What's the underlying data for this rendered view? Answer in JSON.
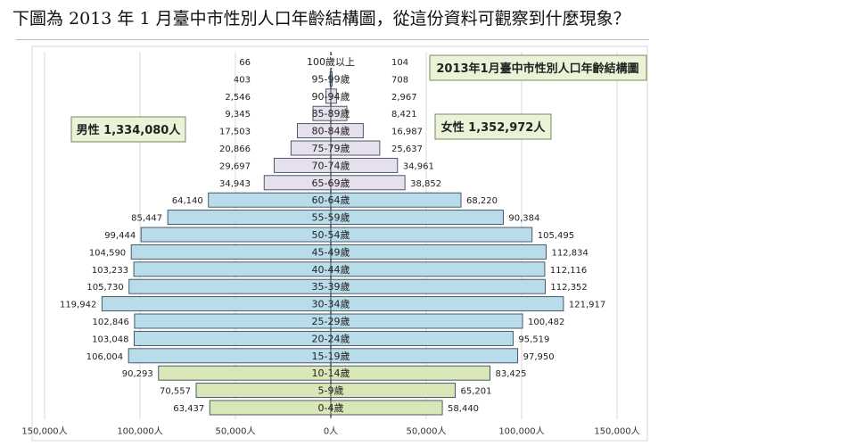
{
  "question": "下圖為 2013 年 1 月臺中市性別人口年齡結構圖，從這份資料可觀察到什麼現象？",
  "chart_data": {
    "type": "bar",
    "orientation": "horizontal",
    "title": "2013年1月臺中市性別人口年齡結構圖",
    "male_label": "男性 1,334,080人",
    "female_label": "女性 1,352,972人",
    "categories": [
      "100歲以上",
      "95-99歲",
      "90-94歲",
      "85-89歲",
      "80-84歲",
      "75-79歲",
      "70-74歲",
      "65-69歲",
      "60-64歲",
      "55-59歲",
      "50-54歲",
      "45-49歲",
      "40-44歲",
      "35-39歲",
      "30-34歲",
      "25-29歲",
      "20-24歲",
      "15-19歲",
      "10-14歲",
      "5-9歲",
      "0-4歲"
    ],
    "series": [
      {
        "name": "男性",
        "values": [
          66,
          403,
          2546,
          9345,
          17503,
          20866,
          29697,
          34943,
          64140,
          85447,
          99444,
          104590,
          103233,
          105730,
          119942,
          102846,
          103048,
          106004,
          90293,
          70557,
          63437
        ]
      },
      {
        "name": "女性",
        "values": [
          104,
          708,
          2967,
          8421,
          16987,
          25637,
          34961,
          38852,
          68220,
          90384,
          105495,
          112834,
          112116,
          112352,
          121917,
          100482,
          95519,
          97950,
          83425,
          65201,
          58440
        ]
      }
    ],
    "value_labels_male": [
      "66",
      "403",
      "2,546",
      "9,345",
      "17,503",
      "20,866",
      "29,697",
      "34,943",
      "64,140",
      "85,447",
      "99,444",
      "104,590",
      "103,233",
      "105,730",
      "119,942",
      "102,846",
      "103,048",
      "106,004",
      "90,293",
      "70,557",
      "63,437"
    ],
    "value_labels_female": [
      "104",
      "708",
      "2,967",
      "8,421",
      "16,987",
      "25,637",
      "34,961",
      "38,852",
      "68,220",
      "90,384",
      "105,495",
      "112,834",
      "112,116",
      "112,352",
      "121,917",
      "100,482",
      "95,519",
      "97,950",
      "83,425",
      "65,201",
      "58,440"
    ],
    "xlim": [
      -150000,
      150000
    ],
    "x_ticks": [
      -150000,
      -100000,
      -50000,
      0,
      50000,
      100000,
      150000
    ],
    "x_tick_labels": [
      "150,000人",
      "100,000人",
      "50,000人",
      "0人",
      "50,000人",
      "100,000人",
      "150,000人"
    ],
    "group_colors": {
      "elderly": "#e6e0ee",
      "working": "#b9dcea",
      "young": "#d8e6b8"
    },
    "elderly_count": 8,
    "young_count": 3,
    "grid": true
  }
}
